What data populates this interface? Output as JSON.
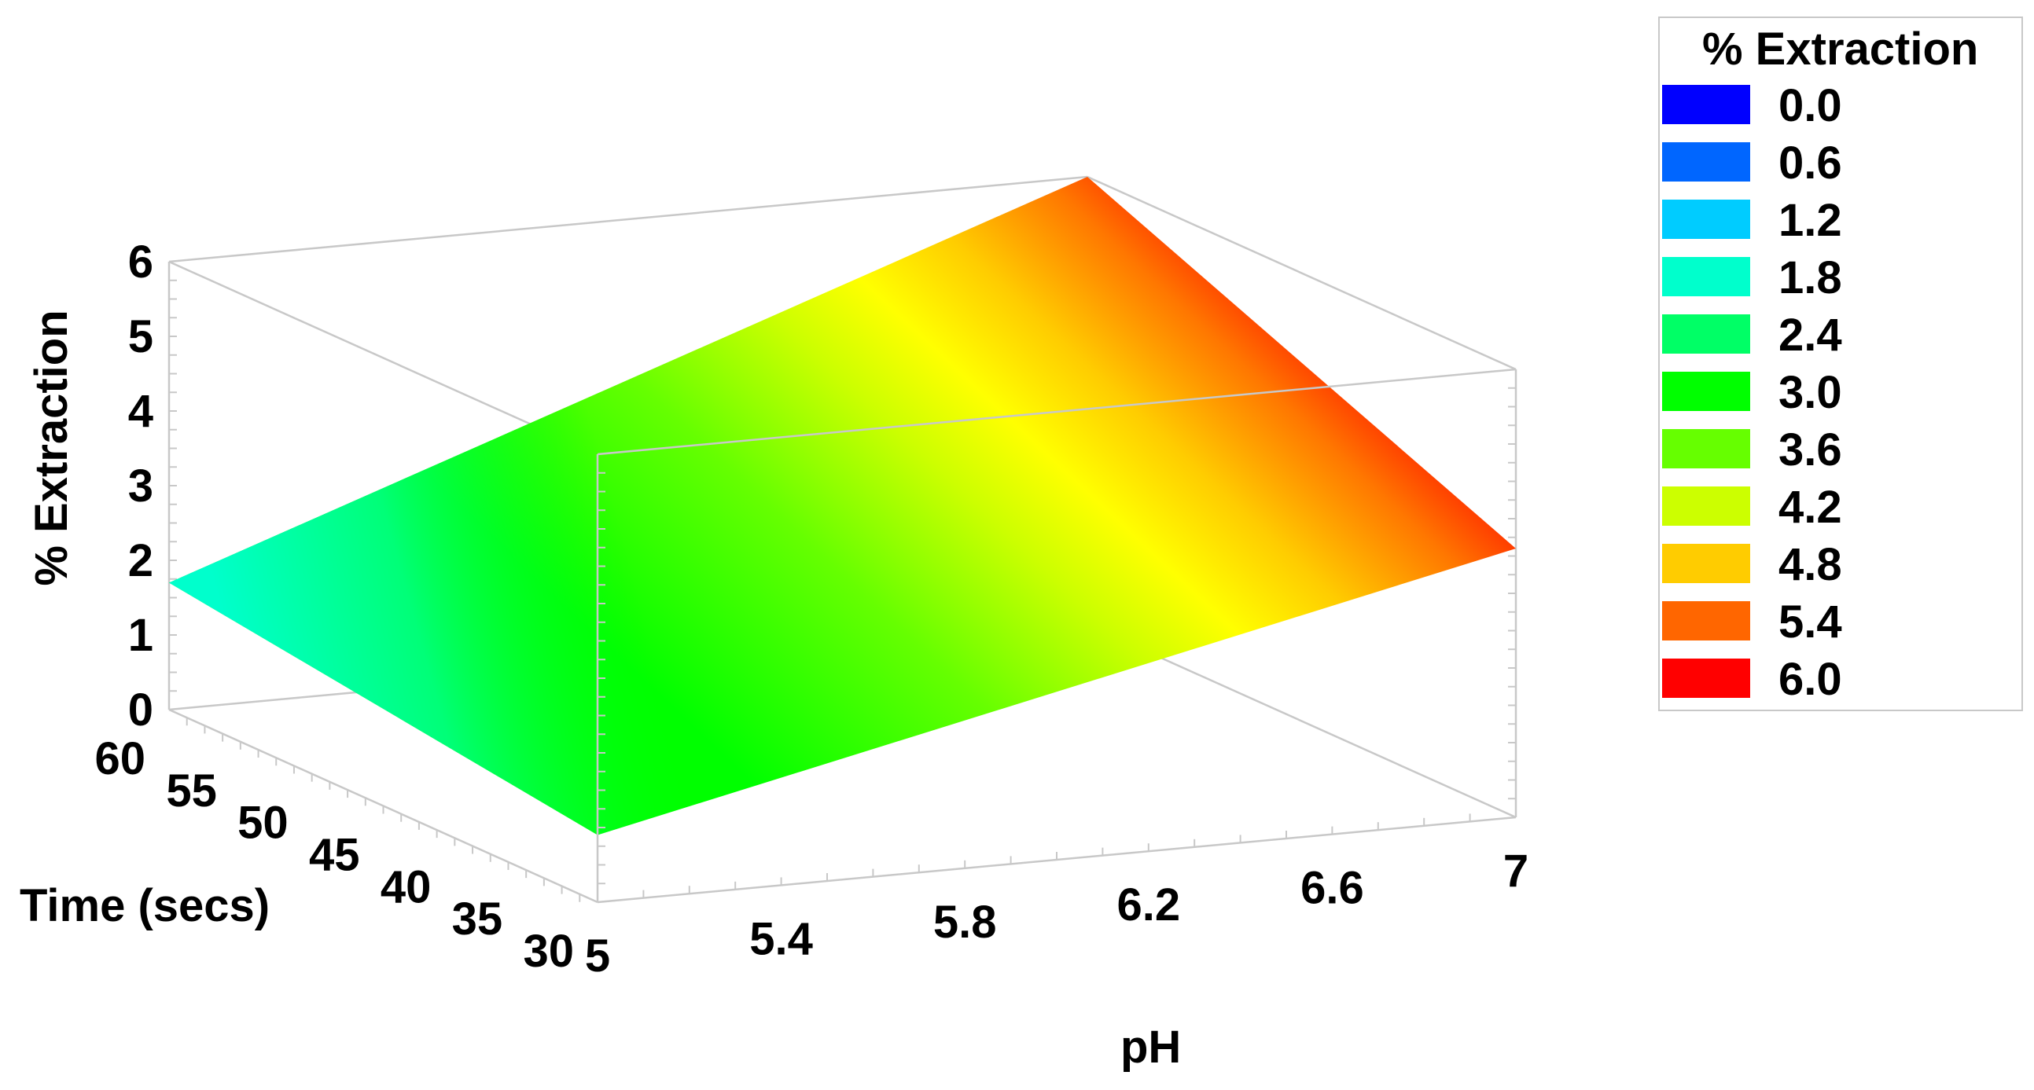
{
  "chart_data": {
    "type": "surface",
    "zlabel": "% Extraction",
    "xlabel": "pH",
    "ylabel": "Time (secs)",
    "x_ticks": [
      "5",
      "5.4",
      "5.8",
      "6.2",
      "6.6",
      "7"
    ],
    "y_ticks": [
      "60",
      "55",
      "50",
      "45",
      "40",
      "35",
      "30"
    ],
    "z_ticks": [
      "0",
      "1",
      "2",
      "3",
      "4",
      "5",
      "6"
    ],
    "xlim": [
      5,
      7
    ],
    "ylim": [
      30,
      60
    ],
    "zlim": [
      0,
      6
    ],
    "surface_corners": [
      {
        "pH": 5,
        "time": 60,
        "value": 1.7
      },
      {
        "pH": 5,
        "time": 30,
        "value": 0.9
      },
      {
        "pH": 7,
        "time": 30,
        "value": 3.6
      },
      {
        "pH": 7,
        "time": 60,
        "value": 6.0
      }
    ],
    "legend": {
      "title": "% Extraction",
      "entries": [
        {
          "label": "0.0",
          "color": "#0000ff"
        },
        {
          "label": "0.6",
          "color": "#0066ff"
        },
        {
          "label": "1.2",
          "color": "#00ccff"
        },
        {
          "label": "1.8",
          "color": "#00ffcc"
        },
        {
          "label": "2.4",
          "color": "#00ff66"
        },
        {
          "label": "3.0",
          "color": "#00ff00"
        },
        {
          "label": "3.6",
          "color": "#66ff00"
        },
        {
          "label": "4.2",
          "color": "#ccff00"
        },
        {
          "label": "4.8",
          "color": "#ffcc00"
        },
        {
          "label": "5.4",
          "color": "#ff6600"
        },
        {
          "label": "6.0",
          "color": "#ff0000"
        }
      ]
    }
  }
}
